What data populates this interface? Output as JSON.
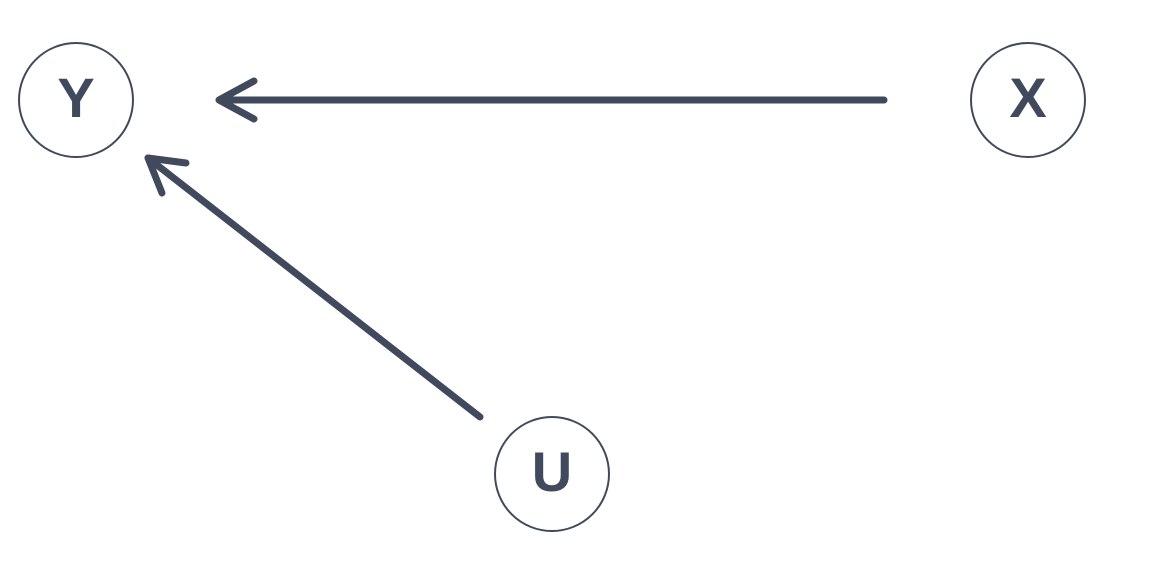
{
  "diagram": {
    "nodes": [
      {
        "id": "Y",
        "label": "Y"
      },
      {
        "id": "X",
        "label": "X"
      },
      {
        "id": "U",
        "label": "U"
      }
    ],
    "edges": [
      {
        "from": "X",
        "to": "Y"
      },
      {
        "from": "U",
        "to": "Y"
      }
    ]
  },
  "colors": {
    "stroke": "#414a5c",
    "background": "#ffffff"
  }
}
